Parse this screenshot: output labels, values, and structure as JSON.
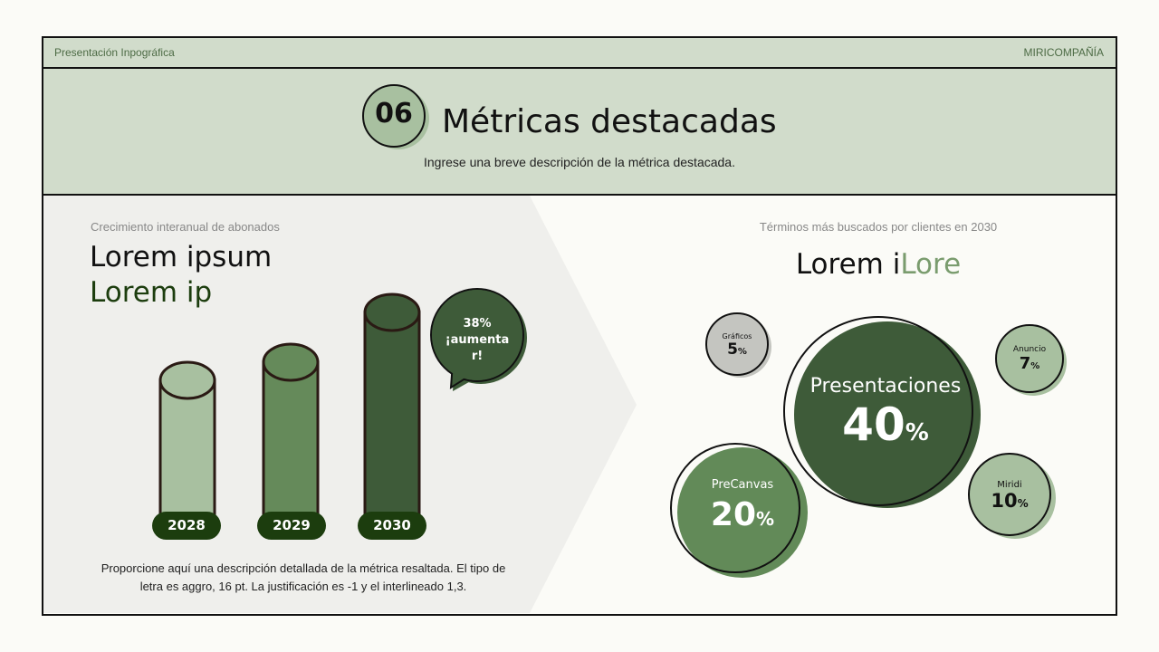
{
  "header": {
    "left_label": "Presentación Inpográfica",
    "right_label": "MIRICOMPAÑÍA"
  },
  "title_band": {
    "number": "06",
    "title": "Métricas destacadas",
    "subtitle": "Ingrese una breve descripción de la métrica destacada."
  },
  "left_panel": {
    "caption": "Crecimiento interanual de abonados",
    "heading_line1": "Lorem ipsum",
    "heading_line2": "Lorem ip",
    "bars": [
      {
        "year": "2028",
        "color": "#a8c0a0"
      },
      {
        "year": "2029",
        "color": "#658a5a"
      },
      {
        "year": "2030",
        "color": "#3e5b39"
      }
    ],
    "callout": {
      "value": "38%",
      "text_line1": "¡aumenta",
      "text_line2": "r!"
    },
    "description": "Proporcione aquí una descripción detallada de la métrica resaltada. El tipo de letra es aggro, 16 pt. La justificación es -1 y el interlineado 1,3."
  },
  "right_panel": {
    "caption": "Términos más buscados por clientes en 2030",
    "heading_dark": "Lorem i",
    "heading_accent": "Lore",
    "bubbles": [
      {
        "label": "Gráficos",
        "value": "5",
        "unit": "%",
        "color": "#c4c5c0"
      },
      {
        "label": "Presentaciones",
        "value": "40",
        "unit": "%",
        "color": "#3e5b39"
      },
      {
        "label": "Anuncio",
        "value": "7",
        "unit": "%",
        "color": "#a8c0a0"
      },
      {
        "label": "PreCanvas",
        "value": "20",
        "unit": "%",
        "color": "#628a58"
      },
      {
        "label": "Miridi",
        "value": "10",
        "unit": "%",
        "color": "#a8c0a0"
      }
    ]
  },
  "colors": {
    "band": "#d1dccb",
    "dark_green": "#1c3d0e",
    "panel_gray": "#efefec",
    "accent_light": "#7a9c6e"
  }
}
